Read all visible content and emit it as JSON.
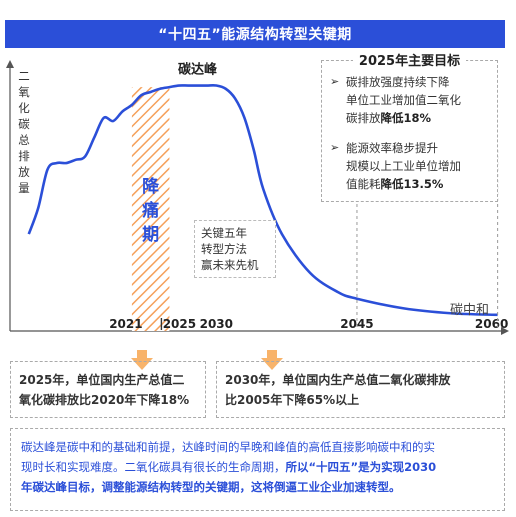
{
  "title": "“十四五”能源结构转型关键期",
  "ylabel": "二氧化碳总排放量",
  "xaxis_name": "碳中和",
  "peak_label": "碳达峰",
  "pain_label": "降痛期",
  "transition": [
    "关键五年",
    "转型方法",
    "赢未来先机"
  ],
  "ticks": [
    "2021",
    "2025",
    "2030",
    "2045",
    "2060"
  ],
  "targets": {
    "title": "2025年主要目标",
    "items": [
      {
        "lines": [
          "碳排放强度持续下降",
          "单位工业增加值二氧化",
          "碳排放"
        ],
        "bold_tail": "降低18%"
      },
      {
        "lines": [
          "能源效率稳步提升",
          "规模以上工业单位增加",
          "值能耗"
        ],
        "bold_tail": "降低13.5%"
      }
    ]
  },
  "box_left": {
    "line1": "2025年，单位国内生产总值二",
    "line2": "氧化碳排放比2020年下降18%"
  },
  "box_right": {
    "line1": "2030年，单位国内生产总值二氧化碳排放",
    "line2": "比2005年下降65%以上"
  },
  "bottom": {
    "line1": "碳达峰是碳中和的基础和前提，达峰时间的早晚和峰值的高低直接影响碳中和的实",
    "line2_a": "现时长和实现难度。二氧化碳具有很长的生命周期，",
    "line2_b": "所以“十四五”是为实现2030",
    "line3": "年碳达峰目标，调整能源结构转型的关键期，这将倒逼工业企业加速转型。"
  },
  "colors": {
    "accent": "#2b4fd8",
    "hatch": "#f5a05a",
    "arrow": "#f8b36a"
  },
  "chart_data": {
    "type": "line",
    "x": [
      2010,
      2011,
      2012,
      2013,
      2014,
      2015,
      2016,
      2017,
      2018,
      2019,
      2020,
      2021,
      2022,
      2023,
      2024,
      2025,
      2026,
      2027,
      2028,
      2029,
      2030,
      2031,
      2032,
      2033,
      2034,
      2035,
      2037,
      2040,
      2043,
      2045,
      2050,
      2055,
      2060
    ],
    "y": [
      30,
      38,
      50,
      52,
      52,
      53,
      54,
      60,
      66,
      65,
      68,
      70,
      73,
      74,
      75,
      75.5,
      76,
      76,
      76,
      76,
      76,
      75,
      72,
      66,
      56,
      44,
      30,
      18,
      12,
      10,
      7,
      5.5,
      5
    ],
    "xlabel": "碳中和",
    "ylabel": "二氧化碳总排放量",
    "ylim": [
      0,
      100
    ],
    "xlim": [
      2008,
      2061
    ],
    "labeled_ticks": [
      2021,
      2025,
      2030,
      2045,
      2060
    ]
  }
}
